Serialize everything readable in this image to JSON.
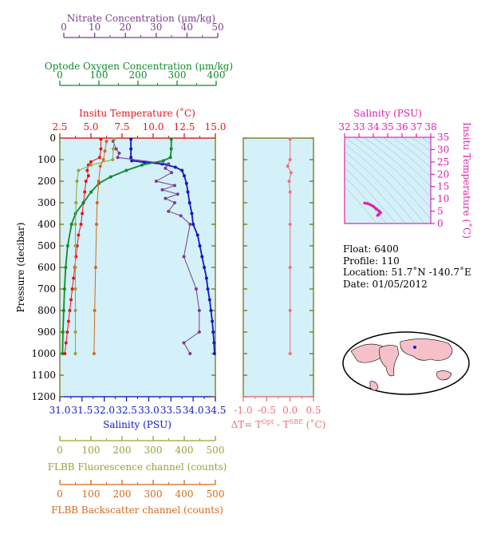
{
  "colors": {
    "nitrate": "#7a3d8c",
    "oxygen": "#0e8a2a",
    "temperature": "#e8141b",
    "salinity": "#1018c8",
    "fluorescence": "#9aa03a",
    "backscatter": "#d2691e",
    "deltaT": "#f07078",
    "saltheta": "#e020b0",
    "panel_bg": "#d4f0f8",
    "frame": "#6b6b00"
  },
  "axes": {
    "nitrate": {
      "label": "Nitrate Concentration (μm/kg)",
      "ticks": [
        "0",
        "10",
        "20",
        "30",
        "40",
        "50"
      ],
      "range": [
        0,
        50
      ]
    },
    "oxygen": {
      "label": "Optode Oxygen Concentration (μm/kg)",
      "ticks": [
        "0",
        "100",
        "200",
        "300",
        "400"
      ],
      "range": [
        0,
        400
      ]
    },
    "temperature": {
      "label": "Insitu Temperature (˚C)",
      "ticks": [
        "2.5",
        "5.0",
        "7.5",
        "10.0",
        "12.5",
        "15.0"
      ],
      "range": [
        2.5,
        15.0
      ]
    },
    "salinity": {
      "label": "Salinity (PSU)",
      "ticks": [
        "31.0",
        "31.5",
        "32.0",
        "32.5",
        "33.0",
        "33.5",
        "34.0",
        "34.5"
      ],
      "range": [
        31.0,
        34.5
      ]
    },
    "pressure": {
      "label": "Pressure (decibar)",
      "ticks": [
        "0",
        "100",
        "200",
        "300",
        "400",
        "500",
        "600",
        "700",
        "800",
        "900",
        "1000",
        "1100",
        "1200"
      ],
      "range": [
        0,
        1200
      ]
    },
    "fluorescence": {
      "label": "FLBB Fluorescence channel (counts)",
      "ticks": [
        "0",
        "100",
        "200",
        "300",
        "400",
        "500"
      ],
      "range": [
        0,
        500
      ]
    },
    "backscatter": {
      "label": "FLBB Backscatter channel (counts)",
      "ticks": [
        "0",
        "100",
        "200",
        "300",
        "400",
        "500"
      ],
      "range": [
        0,
        500
      ]
    },
    "deltaT": {
      "label_prefix": "ΔT= T",
      "label_sup1": "Opt",
      "label_mid": " - T",
      "label_sup2": "SBE",
      "label_suffix": " (˚C)",
      "ticks": [
        "-1.0",
        "-0.5",
        "0.0",
        "0.5"
      ],
      "range": [
        -1.0,
        0.5
      ]
    },
    "ts_salinity": {
      "label": "Salinity (PSU)",
      "ticks": [
        "32",
        "33",
        "34",
        "35",
        "36",
        "37",
        "38"
      ],
      "range": [
        32,
        38
      ]
    },
    "ts_temperature": {
      "label": "Insitu Temperature (˚C)",
      "ticks": [
        "0",
        "5",
        "10",
        "15",
        "20",
        "25",
        "30",
        "35"
      ],
      "range": [
        0,
        35
      ]
    }
  },
  "info": {
    "float": "Float:  6400",
    "profile": "Profile:  110",
    "location": "Location:  51.7˚N  -140.7˚E",
    "date": "Date:  01/05/2012"
  },
  "chart_data": {
    "type": "line",
    "y_axis": "Pressure (decibar)",
    "ylim": [
      1200,
      0
    ],
    "series": [
      {
        "name": "Salinity (PSU)",
        "axis": "salinity",
        "points": [
          [
            32.6,
            5
          ],
          [
            32.6,
            50
          ],
          [
            32.6,
            90
          ],
          [
            32.62,
            105
          ],
          [
            32.9,
            112
          ],
          [
            33.3,
            120
          ],
          [
            33.6,
            135
          ],
          [
            33.75,
            150
          ],
          [
            33.8,
            175
          ],
          [
            33.85,
            210
          ],
          [
            33.88,
            250
          ],
          [
            33.92,
            300
          ],
          [
            33.97,
            350
          ],
          [
            34.0,
            400
          ],
          [
            34.1,
            450
          ],
          [
            34.15,
            500
          ],
          [
            34.2,
            550
          ],
          [
            34.25,
            600
          ],
          [
            34.3,
            650
          ],
          [
            34.33,
            700
          ],
          [
            34.37,
            750
          ],
          [
            34.4,
            800
          ],
          [
            34.43,
            850
          ],
          [
            34.45,
            900
          ],
          [
            34.47,
            950
          ],
          [
            34.48,
            1000
          ]
        ]
      },
      {
        "name": "Insitu Temperature (˚C)",
        "axis": "temperature",
        "points": [
          [
            5.8,
            5
          ],
          [
            5.8,
            50
          ],
          [
            5.7,
            90
          ],
          [
            5.0,
            110
          ],
          [
            4.8,
            125
          ],
          [
            4.7,
            150
          ],
          [
            4.8,
            175
          ],
          [
            4.6,
            200
          ],
          [
            4.5,
            250
          ],
          [
            4.4,
            300
          ],
          [
            4.3,
            350
          ],
          [
            4.2,
            400
          ],
          [
            4.0,
            450
          ],
          [
            3.9,
            500
          ],
          [
            3.8,
            550
          ],
          [
            3.7,
            600
          ],
          [
            3.6,
            650
          ],
          [
            3.5,
            700
          ],
          [
            3.4,
            750
          ],
          [
            3.3,
            800
          ],
          [
            3.2,
            850
          ],
          [
            3.1,
            900
          ],
          [
            3.0,
            950
          ],
          [
            2.9,
            1000
          ]
        ]
      },
      {
        "name": "Optode Oxygen Concentration (μm/kg)",
        "axis": "oxygen",
        "points": [
          [
            285,
            5
          ],
          [
            285,
            50
          ],
          [
            283,
            90
          ],
          [
            265,
            105
          ],
          [
            210,
            125
          ],
          [
            170,
            150
          ],
          [
            130,
            180
          ],
          [
            100,
            210
          ],
          [
            80,
            250
          ],
          [
            60,
            300
          ],
          [
            40,
            350
          ],
          [
            30,
            400
          ],
          [
            20,
            500
          ],
          [
            15,
            600
          ],
          [
            12,
            700
          ],
          [
            10,
            800
          ],
          [
            8,
            900
          ],
          [
            7,
            1000
          ]
        ]
      },
      {
        "name": "Nitrate Concentration (μm/kg)",
        "axis": "nitrate",
        "points": [
          [
            16,
            15
          ],
          [
            17,
            50
          ],
          [
            18,
            70
          ],
          [
            17.5,
            90
          ],
          [
            34,
            120
          ],
          [
            33,
            140
          ],
          [
            35,
            160
          ],
          [
            30,
            200
          ],
          [
            36,
            220
          ],
          [
            32,
            240
          ],
          [
            37,
            260
          ],
          [
            33,
            280
          ],
          [
            36,
            300
          ],
          [
            34,
            340
          ],
          [
            38,
            360
          ],
          [
            41,
            400
          ],
          [
            39,
            550
          ],
          [
            43,
            700
          ],
          [
            44,
            800
          ],
          [
            44,
            900
          ],
          [
            39,
            950
          ],
          [
            41,
            1000
          ]
        ]
      },
      {
        "name": "FLBB Fluorescence channel (counts)",
        "axis": "fluorescence",
        "points": [
          [
            175,
            5
          ],
          [
            172,
            50
          ],
          [
            170,
            100
          ],
          [
            100,
            125
          ],
          [
            60,
            150
          ],
          [
            55,
            200
          ],
          [
            52,
            300
          ],
          [
            50,
            400
          ],
          [
            50,
            500
          ],
          [
            50,
            600
          ],
          [
            50,
            700
          ],
          [
            50,
            800
          ],
          [
            50,
            900
          ],
          [
            50,
            1000
          ]
        ]
      },
      {
        "name": "FLBB Backscatter channel (counts)",
        "axis": "backscatter",
        "points": [
          [
            150,
            15
          ],
          [
            145,
            60
          ],
          [
            140,
            100
          ],
          [
            130,
            130
          ],
          [
            125,
            200
          ],
          [
            120,
            300
          ],
          [
            118,
            400
          ],
          [
            115,
            600
          ],
          [
            112,
            800
          ],
          [
            110,
            1000
          ]
        ]
      },
      {
        "name": "ΔT",
        "axis": "deltaT",
        "points": [
          [
            0.0,
            5
          ],
          [
            0.0,
            100
          ],
          [
            -0.05,
            130
          ],
          [
            0.02,
            160
          ],
          [
            -0.02,
            200
          ],
          [
            0.0,
            250
          ],
          [
            0.0,
            400
          ],
          [
            0.0,
            600
          ],
          [
            0.0,
            800
          ],
          [
            0.0,
            1000
          ]
        ]
      }
    ],
    "ts_points": [
      [
        33.4,
        8.3
      ],
      [
        33.6,
        8.1
      ],
      [
        33.8,
        7.6
      ],
      [
        34.0,
        7.0
      ],
      [
        34.2,
        6.0
      ],
      [
        34.4,
        5.1
      ],
      [
        34.5,
        4.4
      ],
      [
        34.4,
        3.8
      ],
      [
        34.3,
        3.3
      ]
    ]
  }
}
